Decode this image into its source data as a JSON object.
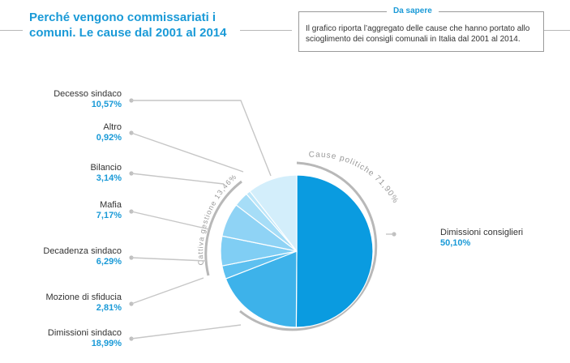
{
  "header": {
    "title_line1": "Perché vengono commissariati i",
    "title_line2": "comuni. Le cause dal 2001 al 2014"
  },
  "info": {
    "label": "Da sapere",
    "text": "Il grafico riporta l’aggregato delle cause che hanno portato allo scioglimento dei consigli comunali in Italia dal 2001 al 2014."
  },
  "chart_data": {
    "type": "pie",
    "title": "Perché vengono commissariati i comuni. Le cause dal 2001 al 2014",
    "slices": [
      {
        "name": "Dimissioni consiglieri",
        "value": 50.1,
        "label": "50,10%",
        "color": "#0a9be0"
      },
      {
        "name": "Dimissioni sindaco",
        "value": 18.99,
        "label": "18,99%",
        "color": "#3db2ea"
      },
      {
        "name": "Mozione di sfiducia",
        "value": 2.81,
        "label": "2,81%",
        "color": "#5dc0f0"
      },
      {
        "name": "Decadenza sindaco",
        "value": 6.29,
        "label": "6,29%",
        "color": "#80cef4"
      },
      {
        "name": "Mafia",
        "value": 7.17,
        "label": "7,17%",
        "color": "#8fd3f5"
      },
      {
        "name": "Bilancio",
        "value": 3.14,
        "label": "3,14%",
        "color": "#a6ddf7"
      },
      {
        "name": "Altro",
        "value": 0.92,
        "label": "0,92%",
        "color": "#bde6f9"
      },
      {
        "name": "Decesso sindaco",
        "value": 10.57,
        "label": "10,57%",
        "color": "#d3eefb"
      }
    ],
    "groups": [
      {
        "name": "Cause politiche 71,90%"
      },
      {
        "name": "Cattiva gestione 13,46%"
      }
    ],
    "colors": {
      "accent": "#1a9ad7",
      "ring": "#b8b8b8",
      "leader": "#c6c6c6"
    }
  }
}
